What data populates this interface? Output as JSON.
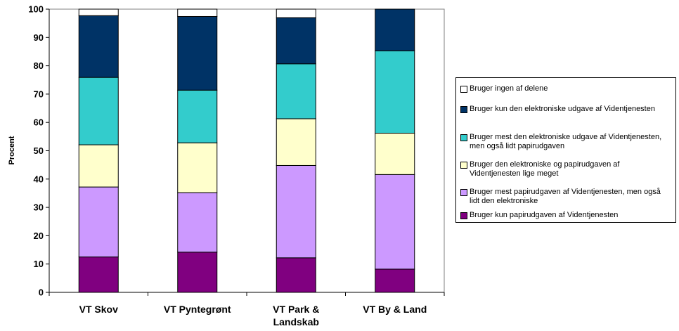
{
  "chart_data": {
    "type": "bar",
    "stacked": true,
    "ylabel": "Procent",
    "ylim": [
      0,
      100
    ],
    "yticks": [
      0,
      10,
      20,
      30,
      40,
      50,
      60,
      70,
      80,
      90,
      100
    ],
    "categories": [
      "VT Skov",
      "VT Pyntegrønt",
      "VT Park & Landskab",
      "VT By & Land"
    ],
    "series": [
      {
        "name": "Bruger kun papirudgaven af Videntjenesten",
        "color": "#800080",
        "values": [
          12.5,
          14.2,
          12.2,
          8.2
        ]
      },
      {
        "name": "Bruger mest papirudgaven af Videntjenesten, men også lidt den elektroniske",
        "color": "#cc99ff",
        "values": [
          24.7,
          21.0,
          32.6,
          33.4
        ]
      },
      {
        "name": "Bruger den elektroniske og papirudgaven af Videntjenesten lige meget",
        "color": "#ffffcc",
        "values": [
          14.9,
          17.6,
          16.5,
          14.6
        ]
      },
      {
        "name": "Bruger mest den elektroniske udgave af Videntjenesten, men også lidt papirudgaven",
        "color": "#33cccc",
        "values": [
          23.8,
          18.6,
          19.4,
          29.1
        ]
      },
      {
        "name": "Bruger kun den elektroniske udgave af Videntjenesten",
        "color": "#003366",
        "values": [
          21.8,
          26.0,
          16.3,
          14.7
        ]
      },
      {
        "name": "Bruger ingen af delene",
        "color": "#ffffff",
        "values": [
          2.3,
          2.6,
          3.0,
          0.0
        ]
      }
    ],
    "legend_position": "right",
    "grid": false
  }
}
